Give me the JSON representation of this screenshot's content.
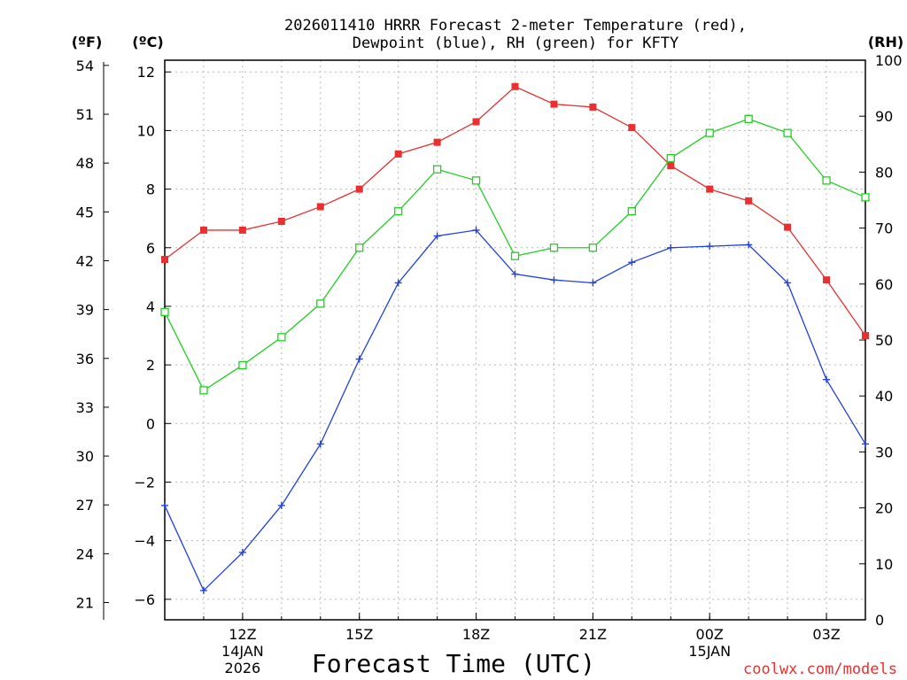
{
  "chart_data": {
    "type": "line",
    "title_line1": "2026011410 HRRR Forecast 2-meter Temperature (red),",
    "title_line2": "Dewpoint (blue), RH (green) for KFTY",
    "xlabel": "Forecast Time (UTC)",
    "credit": "coolwx.com/models",
    "units": {
      "f": "(ºF)",
      "c": "(ºC)",
      "rh": "(RH)"
    },
    "x": [
      10,
      11,
      12,
      13,
      14,
      15,
      16,
      17,
      18,
      19,
      20,
      21,
      22,
      23,
      24,
      25,
      26,
      27,
      28
    ],
    "xlim": [
      10,
      28
    ],
    "x_ticks": [
      {
        "hour": 12,
        "label": "12Z",
        "date1": "14JAN",
        "date2": "2026"
      },
      {
        "hour": 15,
        "label": "15Z",
        "date1": "",
        "date2": ""
      },
      {
        "hour": 18,
        "label": "18Z",
        "date1": "",
        "date2": ""
      },
      {
        "hour": 21,
        "label": "21Z",
        "date1": "",
        "date2": ""
      },
      {
        "hour": 24,
        "label": "00Z",
        "date1": "15JAN",
        "date2": ""
      },
      {
        "hour": 27,
        "label": "03Z",
        "date1": "",
        "date2": ""
      }
    ],
    "ylim_c": [
      -6.7,
      12.4
    ],
    "y_ticks_c": [
      "-6",
      "-4",
      "-2",
      "0",
      "2",
      "4",
      "6",
      "8",
      "10",
      "12"
    ],
    "y_ticks_f": [
      "21",
      "24",
      "27",
      "30",
      "33",
      "36",
      "39",
      "42",
      "45",
      "48",
      "51",
      "54"
    ],
    "y_ticks_rh": [
      "0",
      "10",
      "20",
      "30",
      "40",
      "50",
      "60",
      "70",
      "80",
      "90",
      "100"
    ],
    "series": [
      {
        "name": "Temperature",
        "unit": "C",
        "color": "#e83030",
        "marker": "filled-square",
        "values": [
          5.6,
          6.6,
          6.6,
          6.9,
          7.4,
          8.0,
          9.2,
          9.6,
          10.3,
          11.5,
          10.9,
          10.8,
          10.1,
          8.8,
          8.0,
          7.6,
          6.7,
          4.9,
          3.0
        ]
      },
      {
        "name": "Dewpoint",
        "unit": "C",
        "color": "#2040e0",
        "marker": "plus",
        "values": [
          -2.8,
          -5.7,
          -4.4,
          -2.8,
          -0.7,
          2.2,
          4.8,
          6.4,
          6.6,
          5.1,
          4.9,
          4.8,
          5.5,
          6.0,
          6.05,
          6.1,
          4.8,
          1.5,
          -0.7
        ]
      },
      {
        "name": "RH",
        "unit": "%",
        "color": "#20d020",
        "marker": "open-square",
        "values": [
          55,
          41,
          45.5,
          50.5,
          56.5,
          66.5,
          73,
          80.5,
          78.5,
          65,
          66.5,
          66.5,
          73,
          82.5,
          87,
          89.5,
          87,
          78.5,
          75.5
        ]
      }
    ]
  }
}
